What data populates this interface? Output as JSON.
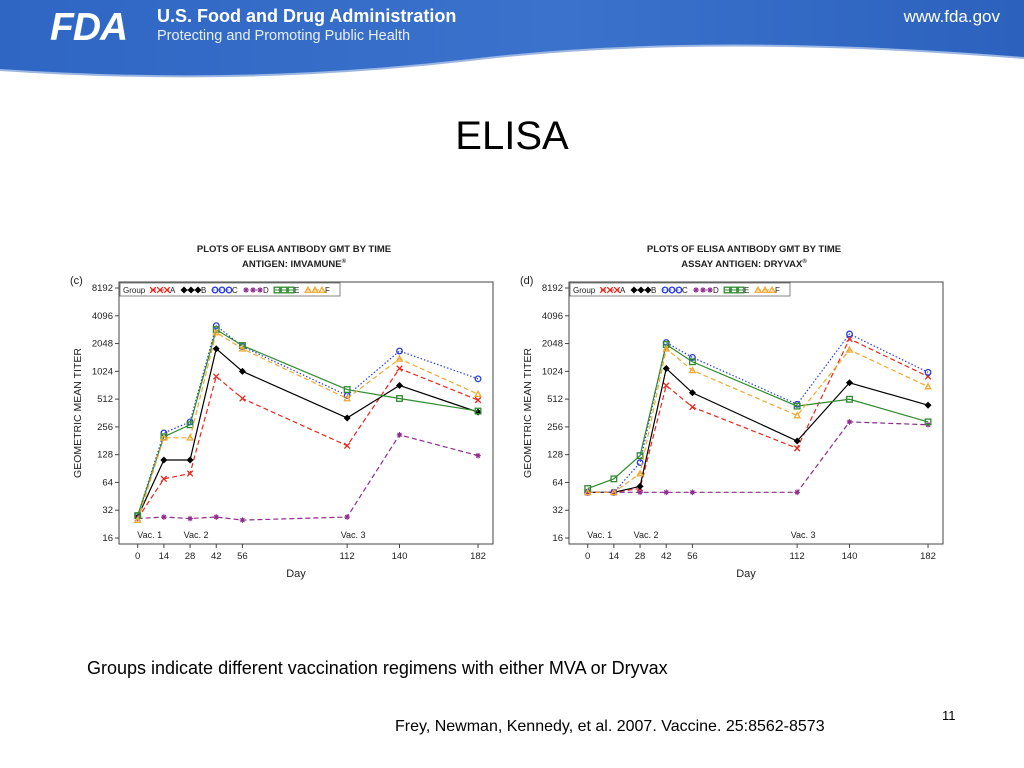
{
  "header": {
    "logo_text": "FDA",
    "agency_name": "U.S. Food and Drug Administration",
    "tagline": "Protecting and Promoting Public Health",
    "url": "www.fda.gov"
  },
  "slide": {
    "title": "ELISA",
    "caption": "Groups indicate different vaccination regimens with either MVA or Dryvax",
    "citation": "Frey, Newman, Kennedy, et al.  2007.  Vaccine. 25:8562-8573",
    "page_number": "11"
  },
  "chart_data": [
    {
      "type": "line",
      "panel_label": "(c)",
      "title": "PLOTS OF ELISA ANTIBODY GMT BY TIME",
      "subtitle": "ANTIGEN:  IMVAMUNE",
      "subtitle_mark": "®",
      "xlabel": "Day",
      "ylabel": "GEOMETRIC MEAN TITER",
      "y_scale": "log2",
      "y_ticks": [
        16,
        32,
        64,
        128,
        256,
        512,
        1024,
        2048,
        4096,
        8192
      ],
      "x_ticks": [
        0,
        14,
        28,
        42,
        56,
        112,
        140,
        182
      ],
      "xlim": [
        -10,
        190
      ],
      "ylim": [
        16,
        8192
      ],
      "legend_title": "Group",
      "legend_placement": "top-left",
      "annotations": [
        {
          "text": "Vac. 1",
          "x": 0
        },
        {
          "text": "Vac. 2",
          "x": 28
        },
        {
          "text": "Vac. 3",
          "x": 112
        }
      ],
      "series": [
        {
          "name": "A",
          "color": "#e8281e",
          "dash": "dashed",
          "marker": "x",
          "x": [
            0,
            14,
            28,
            42,
            56,
            112,
            140,
            182
          ],
          "y": [
            26,
            70,
            80,
            900,
            520,
            160,
            1100,
            500
          ]
        },
        {
          "name": "B",
          "color": "#000000",
          "dash": "solid",
          "marker": "diamond",
          "x": [
            0,
            14,
            28,
            42,
            56,
            112,
            140,
            182
          ],
          "y": [
            27,
            112,
            112,
            1800,
            1024,
            320,
            720,
            370
          ]
        },
        {
          "name": "C",
          "color": "#2a3fd6",
          "dash": "dotted",
          "marker": "circle",
          "x": [
            0,
            14,
            28,
            42,
            56,
            112,
            140,
            182
          ],
          "y": [
            28,
            220,
            290,
            3200,
            1900,
            560,
            1700,
            850
          ]
        },
        {
          "name": "D",
          "color": "#8e2a8e",
          "dash": "dashed",
          "marker": "star",
          "x": [
            0,
            14,
            28,
            42,
            56,
            112,
            140,
            182
          ],
          "y": [
            26,
            27,
            26,
            27,
            25,
            27,
            210,
            125
          ]
        },
        {
          "name": "E",
          "color": "#2e8b2e",
          "dash": "solid",
          "marker": "square",
          "x": [
            0,
            14,
            28,
            42,
            56,
            112,
            140,
            182
          ],
          "y": [
            28,
            200,
            270,
            2900,
            1950,
            650,
            520,
            380
          ]
        },
        {
          "name": "F",
          "color": "#f0a830",
          "dash": "dashed",
          "marker": "triangle",
          "x": [
            0,
            14,
            28,
            42,
            56,
            112,
            140,
            182
          ],
          "y": [
            25,
            195,
            195,
            2700,
            1800,
            520,
            1400,
            580
          ]
        }
      ]
    },
    {
      "type": "line",
      "panel_label": "(d)",
      "title": "PLOTS OF ELISA ANTIBODY GMT BY TIME",
      "subtitle": "ASSAY ANTIGEN:  DRYVAX",
      "subtitle_mark": "®",
      "xlabel": "Day",
      "ylabel": "GEOMETRIC MEAN TITER",
      "y_scale": "log2",
      "y_ticks": [
        16,
        32,
        64,
        128,
        256,
        512,
        1024,
        2048,
        4096,
        8192
      ],
      "x_ticks": [
        0,
        14,
        28,
        42,
        56,
        112,
        140,
        182
      ],
      "xlim": [
        -10,
        190
      ],
      "ylim": [
        16,
        8192
      ],
      "legend_title": "Group",
      "legend_placement": "top-left",
      "annotations": [
        {
          "text": "Vac. 1",
          "x": 0
        },
        {
          "text": "Vac. 2",
          "x": 28
        },
        {
          "text": "Vac. 3",
          "x": 112
        }
      ],
      "series": [
        {
          "name": "A",
          "color": "#e8281e",
          "dash": "dashed",
          "marker": "x",
          "x": [
            0,
            14,
            28,
            42,
            56,
            112,
            140,
            182
          ],
          "y": [
            50,
            50,
            55,
            720,
            420,
            150,
            2300,
            900
          ]
        },
        {
          "name": "B",
          "color": "#000000",
          "dash": "solid",
          "marker": "diamond",
          "x": [
            0,
            14,
            28,
            42,
            56,
            112,
            140,
            182
          ],
          "y": [
            50,
            50,
            58,
            1100,
            600,
            180,
            770,
            440
          ]
        },
        {
          "name": "C",
          "color": "#2a3fd6",
          "dash": "dotted",
          "marker": "circle",
          "x": [
            0,
            14,
            28,
            42,
            56,
            112,
            140,
            182
          ],
          "y": [
            50,
            50,
            105,
            2100,
            1450,
            450,
            2600,
            1000
          ]
        },
        {
          "name": "D",
          "color": "#8e2a8e",
          "dash": "dashed",
          "marker": "star",
          "x": [
            0,
            14,
            28,
            42,
            56,
            112,
            140,
            182
          ],
          "y": [
            50,
            50,
            50,
            50,
            50,
            50,
            290,
            270
          ]
        },
        {
          "name": "E",
          "color": "#2e8b2e",
          "dash": "solid",
          "marker": "square",
          "x": [
            0,
            14,
            28,
            42,
            56,
            112,
            140,
            182
          ],
          "y": [
            55,
            70,
            125,
            2000,
            1300,
            430,
            510,
            290
          ]
        },
        {
          "name": "F",
          "color": "#f0a830",
          "dash": "dashed",
          "marker": "triangle",
          "x": [
            0,
            14,
            28,
            42,
            56,
            112,
            140,
            182
          ],
          "y": [
            50,
            50,
            80,
            1800,
            1050,
            340,
            1750,
            700
          ]
        }
      ]
    }
  ]
}
